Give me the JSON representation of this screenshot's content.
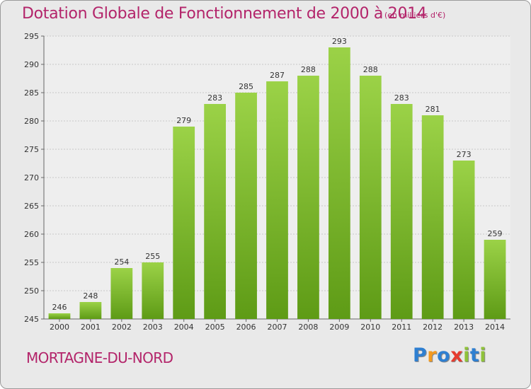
{
  "title": "Dotation Globale de Fonctionnement de 2000 à 2014",
  "subtitle": "(en milliers d'€)",
  "commune": "MORTAGNE-DU-NORD",
  "logo": {
    "text": "Proxiti",
    "letters": [
      {
        "ch": "P",
        "color": "#2e7fd1"
      },
      {
        "ch": "r",
        "color": "#f39a1f"
      },
      {
        "ch": "o",
        "color": "#2e7fd1"
      },
      {
        "ch": "x",
        "color": "#e63b2e"
      },
      {
        "ch": "i",
        "color": "#8fc23a"
      },
      {
        "ch": "t",
        "color": "#2e7fd1"
      },
      {
        "ch": "i",
        "color": "#8fc23a"
      }
    ]
  },
  "colors": {
    "title": "#b3246a",
    "bar_top": "#9bd247",
    "bar_bottom": "#5e9b16",
    "background": "#e9e9e9"
  },
  "chart_data": {
    "type": "bar",
    "title": "Dotation Globale de Fonctionnement de 2000 à 2014",
    "subtitle": "(en milliers d'€)",
    "xlabel": "",
    "ylabel": "",
    "categories": [
      "2000",
      "2001",
      "2002",
      "2003",
      "2004",
      "2005",
      "2006",
      "2007",
      "2008",
      "2009",
      "2010",
      "2011",
      "2012",
      "2013",
      "2014"
    ],
    "values": [
      246,
      248,
      254,
      255,
      279,
      283,
      285,
      287,
      288,
      293,
      288,
      283,
      281,
      273,
      259
    ],
    "ylim": [
      245,
      295
    ],
    "yticks": [
      245,
      250,
      255,
      260,
      265,
      270,
      275,
      280,
      285,
      290,
      295
    ],
    "grid": true,
    "data_labels": true
  }
}
